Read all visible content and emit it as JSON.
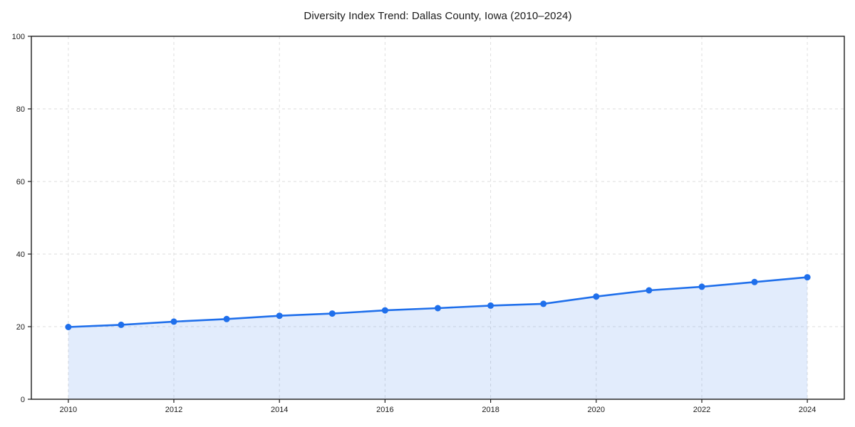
{
  "figure": {
    "background": "#ffffff"
  },
  "chart_data": {
    "type": "line",
    "title": "Diversity Index Trend: Dallas County, Iowa (2010–2024)",
    "series_name": "Diversity Index",
    "x": [
      2010,
      2011,
      2012,
      2013,
      2014,
      2015,
      2016,
      2017,
      2018,
      2019,
      2020,
      2021,
      2022,
      2023,
      2024
    ],
    "values": [
      19.9,
      20.5,
      21.4,
      22.1,
      23.0,
      23.6,
      24.5,
      25.1,
      25.8,
      26.3,
      28.3,
      30.0,
      31.0,
      32.3,
      33.6
    ],
    "xlabel": "",
    "ylabel": "",
    "xlim": [
      2009.3,
      2024.7
    ],
    "ylim": [
      0,
      100
    ],
    "xticks": [
      2010,
      2012,
      2014,
      2016,
      2018,
      2020,
      2022,
      2024
    ],
    "yticks": [
      0,
      20,
      40,
      60,
      80,
      100
    ],
    "grid": "dashed",
    "legend": "none",
    "area_fill": true,
    "marker": "circle",
    "colors": {
      "line": "#1f6feb",
      "marker": "#1f6feb",
      "fill": "rgba(31,111,235,0.13)",
      "grid": "#dedede",
      "axis": "#1a1a1a",
      "text": "#1a1a1a",
      "background": "#ffffff"
    }
  }
}
